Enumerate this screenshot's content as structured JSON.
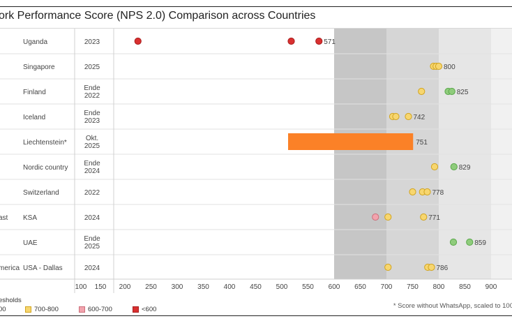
{
  "chart_data": {
    "type": "scatter",
    "title": "ork Performance Score (NPS 2.0) Comparison across Countries",
    "x_ticks": [
      100,
      150,
      200,
      250,
      300,
      350,
      400,
      450,
      500,
      550,
      600,
      650,
      700,
      750,
      800,
      850,
      900
    ],
    "xlim": [
      100,
      950
    ],
    "bands": [
      {
        "from": 600,
        "to": 700,
        "color": "#c6c6c6"
      },
      {
        "from": 700,
        "to": 800,
        "color": "#d6d6d6"
      },
      {
        "from": 800,
        "to": 900,
        "color": "#e6e6e6"
      },
      {
        "from": 900,
        "to": 950,
        "color": "#f1f1f1"
      }
    ],
    "rows": [
      {
        "region": "",
        "country": "Uganda",
        "date": "2023",
        "points": [
          {
            "x": 225,
            "cat": "<600"
          },
          {
            "x": 518,
            "cat": "<600"
          },
          {
            "x": 571,
            "cat": "<600"
          }
        ],
        "label": "571"
      },
      {
        "region": "",
        "country": "Singapore",
        "date": "2025",
        "points": [
          {
            "x": 790,
            "cat": "700-800"
          },
          {
            "x": 795,
            "cat": "700-800"
          },
          {
            "x": 800,
            "cat": "700-800"
          }
        ],
        "label": "800"
      },
      {
        "region": "",
        "country": "Finland",
        "date": "Ende 2022",
        "points": [
          {
            "x": 767,
            "cat": "700-800"
          },
          {
            "x": 818,
            "cat": ">800"
          },
          {
            "x": 825,
            "cat": ">800"
          }
        ],
        "label": "825"
      },
      {
        "region": "",
        "country": "Iceland",
        "date": "Ende 2023",
        "points": [
          {
            "x": 712,
            "cat": "700-800"
          },
          {
            "x": 718,
            "cat": "700-800"
          },
          {
            "x": 742,
            "cat": "700-800"
          }
        ],
        "label": "742"
      },
      {
        "region": "",
        "country": "Liechtenstein*",
        "date": "Okt. 2025",
        "bar": {
          "from": 512,
          "to": 751
        },
        "points": [],
        "label": "751"
      },
      {
        "region": "",
        "country": "Nordic country",
        "date": "Ende 2024",
        "points": [
          {
            "x": 792,
            "cat": "700-800"
          },
          {
            "x": 829,
            "cat": ">800"
          }
        ],
        "label": "829"
      },
      {
        "region": "",
        "country": "Switzerland",
        "date": "2022",
        "points": [
          {
            "x": 750,
            "cat": "700-800"
          },
          {
            "x": 769,
            "cat": "700-800"
          },
          {
            "x": 778,
            "cat": "700-800"
          }
        ],
        "label": "778"
      },
      {
        "region": "ast",
        "country": "KSA",
        "date": "2024",
        "points": [
          {
            "x": 679,
            "cat": "600-700"
          },
          {
            "x": 703,
            "cat": "700-800"
          },
          {
            "x": 771,
            "cat": "700-800"
          }
        ],
        "label": "771"
      },
      {
        "region": "",
        "country": "UAE",
        "date": "Ende 2025",
        "points": [
          {
            "x": 828,
            "cat": ">800"
          },
          {
            "x": 859,
            "cat": ">800"
          }
        ],
        "label": "859"
      },
      {
        "region": "merica",
        "country": "USA - Dallas",
        "date": "2024",
        "points": [
          {
            "x": 703,
            "cat": "700-800"
          },
          {
            "x": 779,
            "cat": "700-800"
          },
          {
            "x": 786,
            "cat": "700-800"
          }
        ],
        "label": "786"
      }
    ],
    "category_colors": {
      ">800": {
        "fill": "#8fcc7c",
        "stroke": "#5aa84a"
      },
      "700-800": {
        "fill": "#f7d66f",
        "stroke": "#d1a420"
      },
      "600-700": {
        "fill": "#f2a3ad",
        "stroke": "#cc6f7b"
      },
      "<600": {
        "fill": "#d93030",
        "stroke": "#a81e1e"
      }
    },
    "bar_color": "#fb8127"
  },
  "legend": {
    "title": "esholds",
    "items": [
      {
        "label": "00",
        "swatch": ""
      },
      {
        "label": "700-800",
        "swatch": "#f7d66f",
        "border": "#d1a420"
      },
      {
        "label": "600-700",
        "swatch": "#f2a3ad",
        "border": "#cc6f7b"
      },
      {
        "label": "<600",
        "swatch": "#d93030",
        "border": "#a81e1e"
      }
    ]
  },
  "footnote": "* Score without WhatsApp, scaled to 100"
}
